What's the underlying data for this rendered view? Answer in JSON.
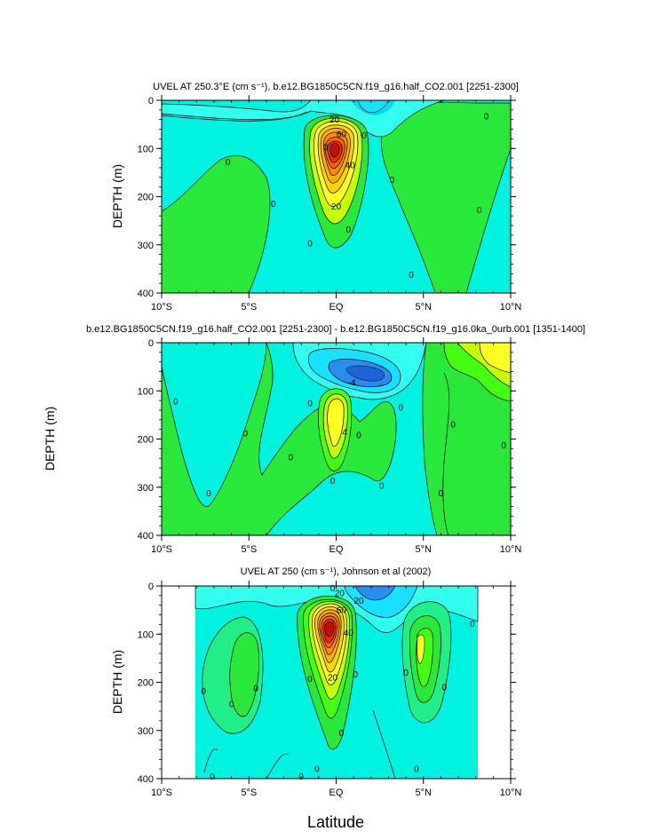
{
  "figure": {
    "xlabel": "Latitude",
    "shared_ylabel": "DEPTH (m)"
  },
  "colors": {
    "cyan": "#00f2e0",
    "light_cyan": "#33ffee",
    "sky": "#19e0ff",
    "blue": "#2a8cf0",
    "light_green": "#22ee88",
    "green": "#2ae83a",
    "bright_green": "#44ff10",
    "yellow_green": "#c8ff00",
    "yellow": "#ffff22",
    "orange": "#ffb000",
    "dark_orange": "#ff7000",
    "red": "#f02c00",
    "dark_red": "#c01000"
  },
  "chart_data": [
    {
      "type": "contour",
      "title": "UVEL AT 250.3°E (cm s⁻¹), b.e12.BG1850C5CN.f19_g16.half_CO2.001 [2251-2300]",
      "xlabel": "",
      "ylabel": "DEPTH (m)",
      "x_range": [
        -10,
        10
      ],
      "y_range": [
        0,
        400
      ],
      "y_inverted": true,
      "x_ticks": [
        "10°S",
        "5°S",
        "EQ",
        "5°N",
        "10°N"
      ],
      "x_tick_values": [
        -10,
        -5,
        0,
        5,
        10
      ],
      "y_ticks": [
        "0",
        "100",
        "200",
        "300",
        "400"
      ],
      "y_tick_values": [
        0,
        100,
        200,
        300,
        400
      ],
      "contour_interval": 10,
      "data_extent": [
        -10,
        10
      ],
      "features": [
        {
          "kind": "core",
          "lat": 0,
          "depth": 95,
          "max": 80
        },
        {
          "kind": "westward",
          "lat": 2,
          "depth": 10,
          "min": -10
        }
      ],
      "contour_labels": [
        {
          "text": "20",
          "lat": -0.1,
          "depth": 40
        },
        {
          "text": "60",
          "lat": 0.3,
          "depth": 70
        },
        {
          "text": "40",
          "lat": 0.8,
          "depth": 135
        },
        {
          "text": "20",
          "lat": 0,
          "depth": 220
        },
        {
          "text": "0",
          "lat": -6.2,
          "depth": 128
        },
        {
          "text": "0",
          "lat": -3.6,
          "depth": 215
        },
        {
          "text": "0",
          "lat": -0.6,
          "depth": 97
        },
        {
          "text": "0",
          "lat": 1.6,
          "depth": 73
        },
        {
          "text": "0",
          "lat": 3.2,
          "depth": 165
        },
        {
          "text": "0",
          "lat": 8.6,
          "depth": 33
        },
        {
          "text": "0",
          "lat": 8.2,
          "depth": 228
        },
        {
          "text": "0",
          "lat": 0.7,
          "depth": 268
        },
        {
          "text": "0",
          "lat": -1.5,
          "depth": 297
        },
        {
          "text": "0",
          "lat": 4.3,
          "depth": 362
        }
      ]
    },
    {
      "type": "contour",
      "title": "b.e12.BG1850C5CN.f19_g16.half_CO2.001 [2251-2300] - b.e12.BG1850C5CN.f19_g16.0ka_0urb.001 [1351-1400]",
      "xlabel": "",
      "ylabel": "",
      "x_range": [
        -10,
        10
      ],
      "y_range": [
        0,
        400
      ],
      "y_inverted": true,
      "x_ticks": [
        "10°S",
        "5°S",
        "EQ",
        "5°N",
        "10°N"
      ],
      "x_tick_values": [
        -10,
        -5,
        0,
        5,
        10
      ],
      "y_ticks": [
        "0",
        "100",
        "200",
        "300",
        "400"
      ],
      "y_tick_values": [
        0,
        100,
        200,
        300,
        400
      ],
      "contour_interval": 2,
      "data_extent": [
        -10,
        10
      ],
      "features": [
        {
          "kind": "core",
          "lat": 0,
          "depth": 170,
          "max": 8
        },
        {
          "kind": "westward",
          "lat": 1.2,
          "depth": 60,
          "min": -6
        }
      ],
      "contour_labels": [
        {
          "text": "-4",
          "lat": 0.9,
          "depth": 82
        },
        {
          "text": "4",
          "lat": 0.5,
          "depth": 185
        },
        {
          "text": "0",
          "lat": -9.2,
          "depth": 122
        },
        {
          "text": "0",
          "lat": -5.2,
          "depth": 188
        },
        {
          "text": "0",
          "lat": -7.3,
          "depth": 312
        },
        {
          "text": "0",
          "lat": -2.6,
          "depth": 238
        },
        {
          "text": "0",
          "lat": -1.5,
          "depth": 125
        },
        {
          "text": "0",
          "lat": 1.3,
          "depth": 192
        },
        {
          "text": "0",
          "lat": 3.7,
          "depth": 135
        },
        {
          "text": "0",
          "lat": -0.2,
          "depth": 287
        },
        {
          "text": "0",
          "lat": 2.6,
          "depth": 297
        },
        {
          "text": "0",
          "lat": 6.7,
          "depth": 170
        },
        {
          "text": "0",
          "lat": 6.0,
          "depth": 312
        },
        {
          "text": "0",
          "lat": 9.6,
          "depth": 213
        }
      ]
    },
    {
      "type": "contour",
      "title": "UVEL AT 250 (cm s⁻¹), Johnson et al (2002)",
      "xlabel": "Latitude",
      "ylabel": "DEPTH (m)",
      "x_range": [
        -10,
        10
      ],
      "y_range": [
        0,
        400
      ],
      "y_inverted": true,
      "x_ticks": [
        "10°S",
        "5°S",
        "EQ",
        "5°N",
        "10°N"
      ],
      "x_tick_values": [
        -10,
        -5,
        0,
        5,
        10
      ],
      "y_ticks": [
        "0",
        "100",
        "200",
        "300",
        "400"
      ],
      "y_tick_values": [
        0,
        100,
        200,
        300,
        400
      ],
      "contour_interval": 10,
      "data_extent": [
        -8,
        8.2
      ],
      "features": [
        {
          "kind": "core",
          "lat": -0.2,
          "depth": 75,
          "max": 90
        },
        {
          "kind": "westward",
          "lat": 2,
          "depth": 30,
          "min": -20
        }
      ],
      "contour_labels": [
        {
          "text": "0",
          "lat": -0.2,
          "depth": 5
        },
        {
          "text": "20",
          "lat": 0.2,
          "depth": 15
        },
        {
          "text": "60",
          "lat": 0.3,
          "depth": 50
        },
        {
          "text": "40",
          "lat": 0.7,
          "depth": 97
        },
        {
          "text": "20",
          "lat": 1.3,
          "depth": 30
        },
        {
          "text": "20",
          "lat": -0.2,
          "depth": 190
        },
        {
          "text": "0",
          "lat": -7.6,
          "depth": 218
        },
        {
          "text": "0",
          "lat": -6.0,
          "depth": 245
        },
        {
          "text": "0",
          "lat": -4.6,
          "depth": 212
        },
        {
          "text": "0",
          "lat": -1.5,
          "depth": 193
        },
        {
          "text": "0",
          "lat": 0.3,
          "depth": 305
        },
        {
          "text": "0",
          "lat": 1.1,
          "depth": 183
        },
        {
          "text": "0",
          "lat": 4.0,
          "depth": 180
        },
        {
          "text": "0",
          "lat": 6.2,
          "depth": 210
        },
        {
          "text": "0",
          "lat": 7.8,
          "depth": 78
        },
        {
          "text": "0",
          "lat": 4.6,
          "depth": 380
        },
        {
          "text": "0",
          "lat": -1.1,
          "depth": 380
        },
        {
          "text": "0",
          "lat": -2.0,
          "depth": 395
        },
        {
          "text": "0",
          "lat": -7.1,
          "depth": 395
        }
      ]
    }
  ]
}
